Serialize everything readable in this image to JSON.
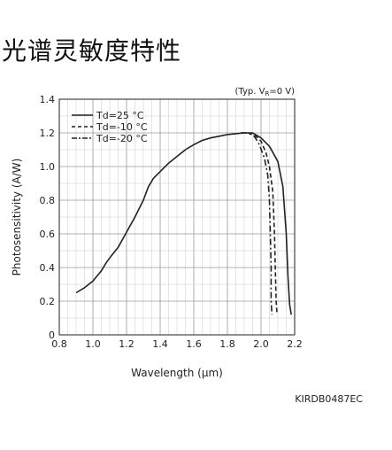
{
  "page_title": "光谱灵敏度特性",
  "figure_code": "KIRDB0487EC",
  "chart_data": {
    "type": "line",
    "condition_label": "(Typ. V",
    "condition_sub": "R",
    "condition_tail": "=0 V)",
    "xlabel": "Wavelength (μm)",
    "ylabel": "Photosensitivity (A/W)",
    "xlim": [
      0.8,
      2.2
    ],
    "ylim": [
      0,
      1.4
    ],
    "x_ticks": [
      "0.8",
      "1.0",
      "1.2",
      "1.4",
      "1.6",
      "1.8",
      "2.0",
      "2.2"
    ],
    "y_ticks": [
      "0",
      "0.2",
      "0.4",
      "0.6",
      "0.8",
      "1.0",
      "1.2",
      "1.4"
    ],
    "grid": true,
    "legend_position": "top-left",
    "series": [
      {
        "name": "Td=25 °C",
        "style": "solid",
        "color": "#222222",
        "points": [
          [
            0.9,
            0.25
          ],
          [
            0.95,
            0.28
          ],
          [
            1.0,
            0.32
          ],
          [
            1.05,
            0.38
          ],
          [
            1.08,
            0.43
          ],
          [
            1.11,
            0.47
          ],
          [
            1.15,
            0.52
          ],
          [
            1.2,
            0.61
          ],
          [
            1.25,
            0.7
          ],
          [
            1.3,
            0.8
          ],
          [
            1.33,
            0.88
          ],
          [
            1.36,
            0.93
          ],
          [
            1.4,
            0.97
          ],
          [
            1.45,
            1.02
          ],
          [
            1.5,
            1.06
          ],
          [
            1.55,
            1.1
          ],
          [
            1.6,
            1.13
          ],
          [
            1.65,
            1.155
          ],
          [
            1.7,
            1.17
          ],
          [
            1.75,
            1.18
          ],
          [
            1.8,
            1.19
          ],
          [
            1.85,
            1.195
          ],
          [
            1.9,
            1.2
          ],
          [
            1.95,
            1.2
          ],
          [
            2.0,
            1.17
          ],
          [
            2.05,
            1.12
          ],
          [
            2.1,
            1.03
          ],
          [
            2.13,
            0.88
          ],
          [
            2.15,
            0.6
          ],
          [
            2.16,
            0.35
          ],
          [
            2.17,
            0.18
          ],
          [
            2.18,
            0.12
          ]
        ]
      },
      {
        "name": "Td=-10 °C",
        "style": "dashed",
        "color": "#222222",
        "points": [
          [
            1.88,
            1.2
          ],
          [
            1.92,
            1.2
          ],
          [
            1.96,
            1.19
          ],
          [
            2.0,
            1.15
          ],
          [
            2.03,
            1.08
          ],
          [
            2.05,
            1.0
          ],
          [
            2.07,
            0.85
          ],
          [
            2.08,
            0.6
          ],
          [
            2.085,
            0.4
          ],
          [
            2.09,
            0.2
          ],
          [
            2.095,
            0.12
          ]
        ]
      },
      {
        "name": "Td=-20 °C",
        "style": "dashdot",
        "color": "#222222",
        "points": [
          [
            1.88,
            1.2
          ],
          [
            1.92,
            1.2
          ],
          [
            1.96,
            1.18
          ],
          [
            1.99,
            1.13
          ],
          [
            2.02,
            1.05
          ],
          [
            2.04,
            0.95
          ],
          [
            2.05,
            0.8
          ],
          [
            2.055,
            0.6
          ],
          [
            2.06,
            0.4
          ],
          [
            2.06,
            0.2
          ],
          [
            2.065,
            0.12
          ]
        ]
      }
    ]
  }
}
